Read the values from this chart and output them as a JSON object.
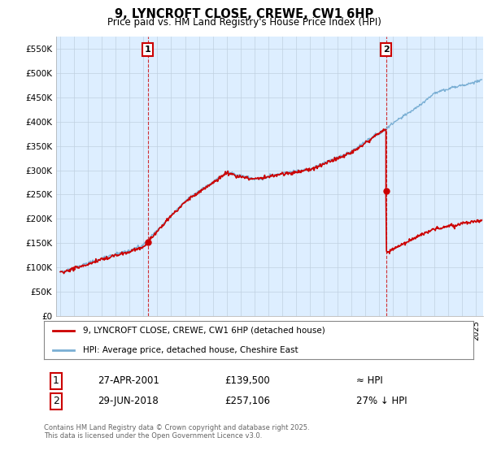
{
  "title": "9, LYNCROFT CLOSE, CREWE, CW1 6HP",
  "subtitle": "Price paid vs. HM Land Registry's House Price Index (HPI)",
  "ylabel_ticks": [
    "£0",
    "£50K",
    "£100K",
    "£150K",
    "£200K",
    "£250K",
    "£300K",
    "£350K",
    "£400K",
    "£450K",
    "£500K",
    "£550K"
  ],
  "ytick_values": [
    0,
    50000,
    100000,
    150000,
    200000,
    250000,
    300000,
    350000,
    400000,
    450000,
    500000,
    550000
  ],
  "ylim": [
    0,
    575000
  ],
  "xlim_start": 1994.7,
  "xlim_end": 2025.5,
  "sale1_year": 2001.32,
  "sale1_price": 139500,
  "sale2_year": 2018.49,
  "sale2_price": 257106,
  "sale2_hpi_price": 352000,
  "annotation1_label": "1",
  "annotation2_label": "2",
  "sale_color": "#cc0000",
  "hpi_color": "#7aafd4",
  "legend_sale": "9, LYNCROFT CLOSE, CREWE, CW1 6HP (detached house)",
  "legend_hpi": "HPI: Average price, detached house, Cheshire East",
  "table_row1": [
    "1",
    "27-APR-2001",
    "£139,500",
    "≈ HPI"
  ],
  "table_row2": [
    "2",
    "29-JUN-2018",
    "£257,106",
    "27% ↓ HPI"
  ],
  "footer": "Contains HM Land Registry data © Crown copyright and database right 2025.\nThis data is licensed under the Open Government Licence v3.0.",
  "background_color": "#ffffff",
  "plot_bg_color": "#ddeeff",
  "grid_color": "#c0d0e0"
}
